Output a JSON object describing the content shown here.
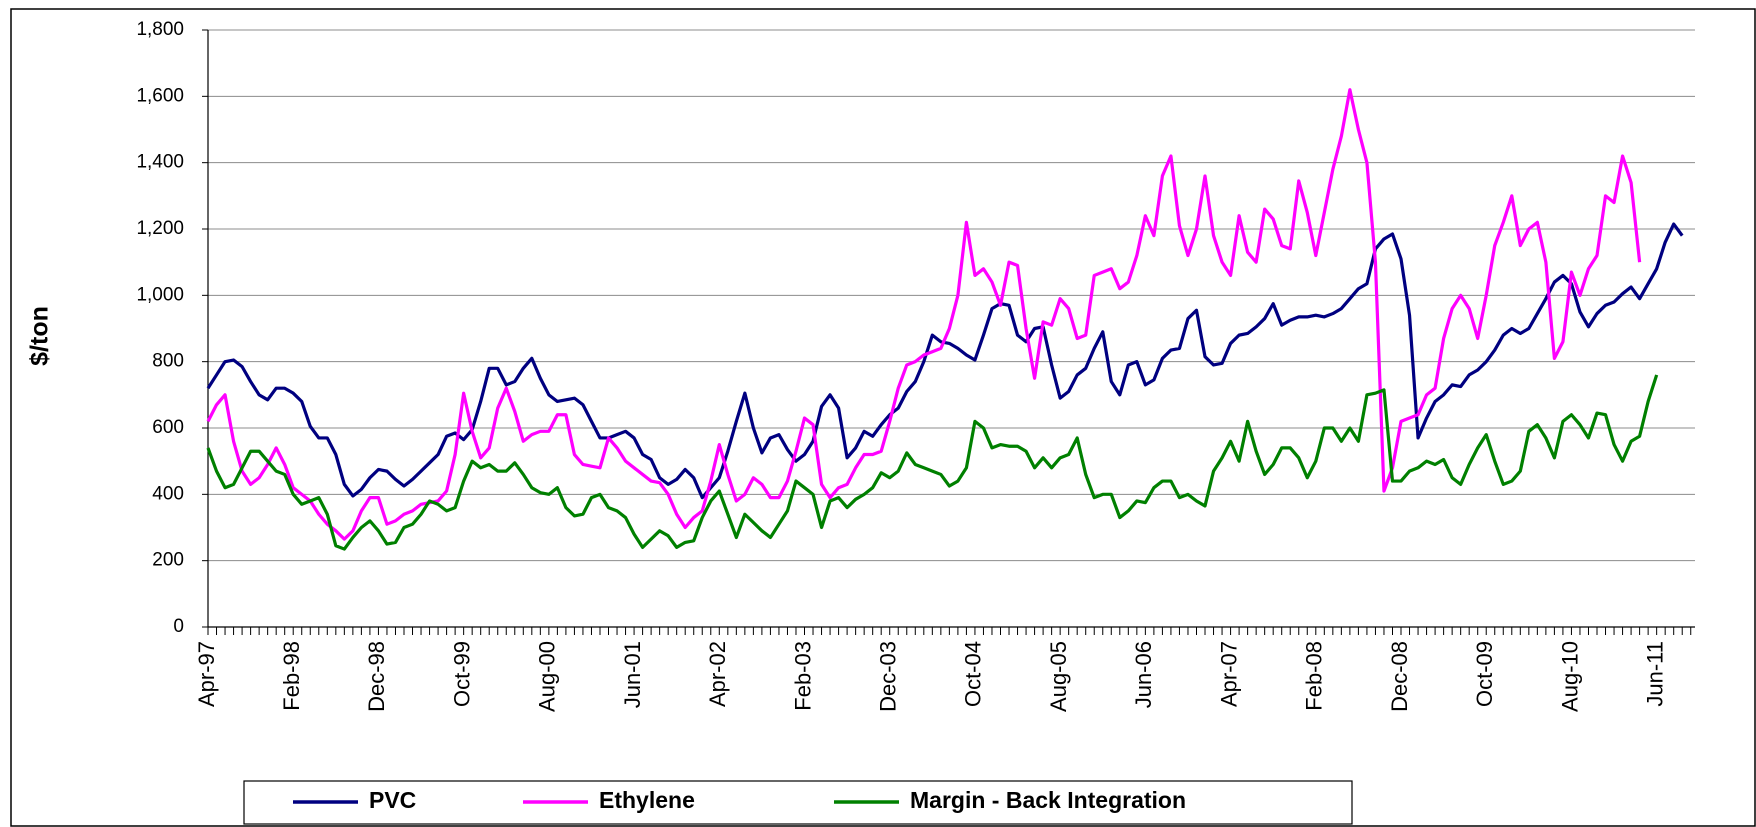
{
  "chart_data": {
    "type": "line",
    "y_label": "$/ton",
    "ylim": [
      0,
      1800
    ],
    "yticks": [
      0,
      {
        "value": 200,
        "label": "200"
      },
      400,
      600,
      800,
      {
        "value": 1000,
        "label": "1,000"
      },
      {
        "value": 1200,
        "label": "1,200"
      },
      {
        "value": 1400,
        "label": "1,400"
      },
      {
        "value": 1600,
        "label": "1,600"
      },
      {
        "value": 1800,
        "label": "1,800"
      }
    ],
    "grid": true,
    "legend": "bottom",
    "categories": [
      "Apr-97",
      null,
      null,
      null,
      null,
      null,
      null,
      null,
      null,
      null,
      "Feb-98",
      null,
      null,
      null,
      null,
      null,
      null,
      null,
      null,
      null,
      "Dec-98",
      null,
      null,
      null,
      null,
      null,
      null,
      null,
      null,
      null,
      "Oct-99",
      null,
      null,
      null,
      null,
      null,
      null,
      null,
      null,
      null,
      "Aug-00",
      null,
      null,
      null,
      null,
      null,
      null,
      null,
      null,
      null,
      "Jun-01",
      null,
      null,
      null,
      null,
      null,
      null,
      null,
      null,
      null,
      "Apr-02",
      null,
      null,
      null,
      null,
      null,
      null,
      null,
      null,
      null,
      "Feb-03",
      null,
      null,
      null,
      null,
      null,
      null,
      null,
      null,
      null,
      "Dec-03",
      null,
      null,
      null,
      null,
      null,
      null,
      null,
      null,
      null,
      "Oct-04",
      null,
      null,
      null,
      null,
      null,
      null,
      null,
      null,
      null,
      "Aug-05",
      null,
      null,
      null,
      null,
      null,
      null,
      null,
      null,
      null,
      "Jun-06",
      null,
      null,
      null,
      null,
      null,
      null,
      null,
      null,
      null,
      "Apr-07",
      null,
      null,
      null,
      null,
      null,
      null,
      null,
      null,
      null,
      "Feb-08",
      null,
      null,
      null,
      null,
      null,
      null,
      null,
      null,
      null,
      "Dec-08",
      null,
      null,
      null,
      null,
      null,
      null,
      null,
      null,
      null,
      "Oct-09",
      null,
      null,
      null,
      null,
      null,
      null,
      null,
      null,
      null,
      "Aug-10",
      null,
      null,
      null,
      null,
      null,
      null,
      null,
      null,
      null,
      "Jun-11",
      null,
      null,
      null,
      null
    ],
    "series": [
      {
        "name": "PVC",
        "color": "#000080",
        "values": [
          720,
          760,
          800,
          805,
          785,
          740,
          700,
          685,
          720,
          720,
          705,
          680,
          605,
          570,
          570,
          520,
          430,
          395,
          415,
          450,
          475,
          470,
          445,
          425,
          445,
          470,
          495,
          520,
          575,
          585,
          565,
          595,
          680,
          780,
          780,
          730,
          740,
          780,
          810,
          750,
          700,
          680,
          685,
          690,
          670,
          620,
          570,
          570,
          580,
          590,
          570,
          520,
          505,
          450,
          430,
          445,
          475,
          450,
          390,
          420,
          450,
          530,
          620,
          705,
          600,
          525,
          570,
          580,
          535,
          500,
          520,
          560,
          665,
          700,
          660,
          510,
          540,
          590,
          575,
          610,
          640,
          660,
          710,
          740,
          800,
          880,
          860,
          855,
          840,
          820,
          805,
          880,
          960,
          975,
          970,
          880,
          860,
          900,
          905,
          790,
          690,
          710,
          760,
          780,
          840,
          890,
          740,
          700,
          790,
          800,
          730,
          745,
          810,
          835,
          840,
          930,
          955,
          815,
          790,
          795,
          855,
          880,
          885,
          905,
          930,
          975,
          910,
          925,
          935,
          935,
          940,
          935,
          945,
          960,
          990,
          1020,
          1035,
          1140,
          1170,
          1185,
          1110,
          940,
          570,
          630,
          680,
          700,
          730,
          725,
          760,
          775,
          800,
          835,
          880,
          900,
          885,
          900,
          945,
          990,
          1040,
          1060,
          1035,
          950,
          905,
          945,
          970,
          980,
          1005,
          1025,
          990,
          1035,
          1080,
          1160,
          1215,
          1180,
          null
        ]
      },
      {
        "name": "Ethylene",
        "color": "#ff00ff",
        "values": [
          620,
          670,
          700,
          560,
          470,
          430,
          450,
          490,
          540,
          490,
          420,
          400,
          380,
          340,
          310,
          290,
          265,
          290,
          350,
          390,
          390,
          310,
          320,
          340,
          350,
          370,
          375,
          380,
          410,
          520,
          705,
          590,
          510,
          540,
          660,
          720,
          650,
          560,
          580,
          590,
          590,
          640,
          640,
          520,
          490,
          485,
          480,
          570,
          540,
          500,
          480,
          460,
          440,
          435,
          400,
          340,
          300,
          330,
          350,
          440,
          550,
          460,
          380,
          400,
          450,
          430,
          390,
          390,
          440,
          530,
          630,
          610,
          430,
          390,
          420,
          430,
          480,
          520,
          520,
          530,
          620,
          720,
          790,
          800,
          820,
          830,
          840,
          900,
          1000,
          1220,
          1060,
          1080,
          1040,
          970,
          1100,
          1090,
          900,
          750,
          920,
          910,
          990,
          960,
          870,
          880,
          1060,
          1070,
          1080,
          1020,
          1040,
          1120,
          1240,
          1180,
          1360,
          1420,
          1210,
          1120,
          1200,
          1360,
          1180,
          1100,
          1060,
          1240,
          1130,
          1100,
          1260,
          1230,
          1150,
          1140,
          1345,
          1250,
          1120,
          1250,
          1380,
          1480,
          1620,
          1500,
          1400,
          1100,
          410,
          480,
          620,
          630,
          640,
          700,
          720,
          870,
          960,
          1000,
          960,
          870,
          1000,
          1150,
          1220,
          1300,
          1150,
          1200,
          1220,
          1100,
          810,
          860,
          1070,
          1000,
          1080,
          1120,
          1300,
          1280,
          1420,
          1340,
          1100,
          null,
          null,
          null,
          null,
          null,
          null
        ]
      },
      {
        "name": "Margin - Back Integration",
        "color": "#008000",
        "values": [
          540,
          470,
          420,
          430,
          480,
          530,
          530,
          500,
          470,
          460,
          400,
          370,
          380,
          390,
          340,
          245,
          235,
          270,
          300,
          320,
          290,
          250,
          255,
          300,
          310,
          340,
          380,
          370,
          350,
          360,
          440,
          500,
          480,
          490,
          470,
          470,
          495,
          460,
          420,
          405,
          400,
          420,
          360,
          335,
          340,
          390,
          400,
          360,
          350,
          330,
          280,
          240,
          265,
          290,
          275,
          240,
          255,
          260,
          330,
          380,
          410,
          340,
          270,
          340,
          315,
          290,
          270,
          310,
          350,
          440,
          420,
          400,
          300,
          380,
          390,
          360,
          385,
          400,
          420,
          465,
          450,
          470,
          525,
          490,
          480,
          470,
          460,
          425,
          440,
          480,
          620,
          600,
          540,
          550,
          545,
          545,
          530,
          480,
          510,
          480,
          510,
          520,
          570,
          460,
          390,
          400,
          400,
          330,
          350,
          380,
          375,
          420,
          440,
          440,
          390,
          400,
          380,
          365,
          470,
          510,
          560,
          500,
          620,
          530,
          460,
          490,
          540,
          540,
          510,
          450,
          500,
          600,
          600,
          560,
          600,
          560,
          700,
          705,
          715,
          440,
          440,
          470,
          480,
          500,
          490,
          505,
          450,
          430,
          490,
          540,
          580,
          500,
          430,
          440,
          470,
          590,
          610,
          570,
          510,
          620,
          640,
          610,
          570,
          645,
          640,
          550,
          500,
          560,
          575,
          680,
          760,
          null,
          null,
          null,
          null
        ]
      }
    ]
  }
}
